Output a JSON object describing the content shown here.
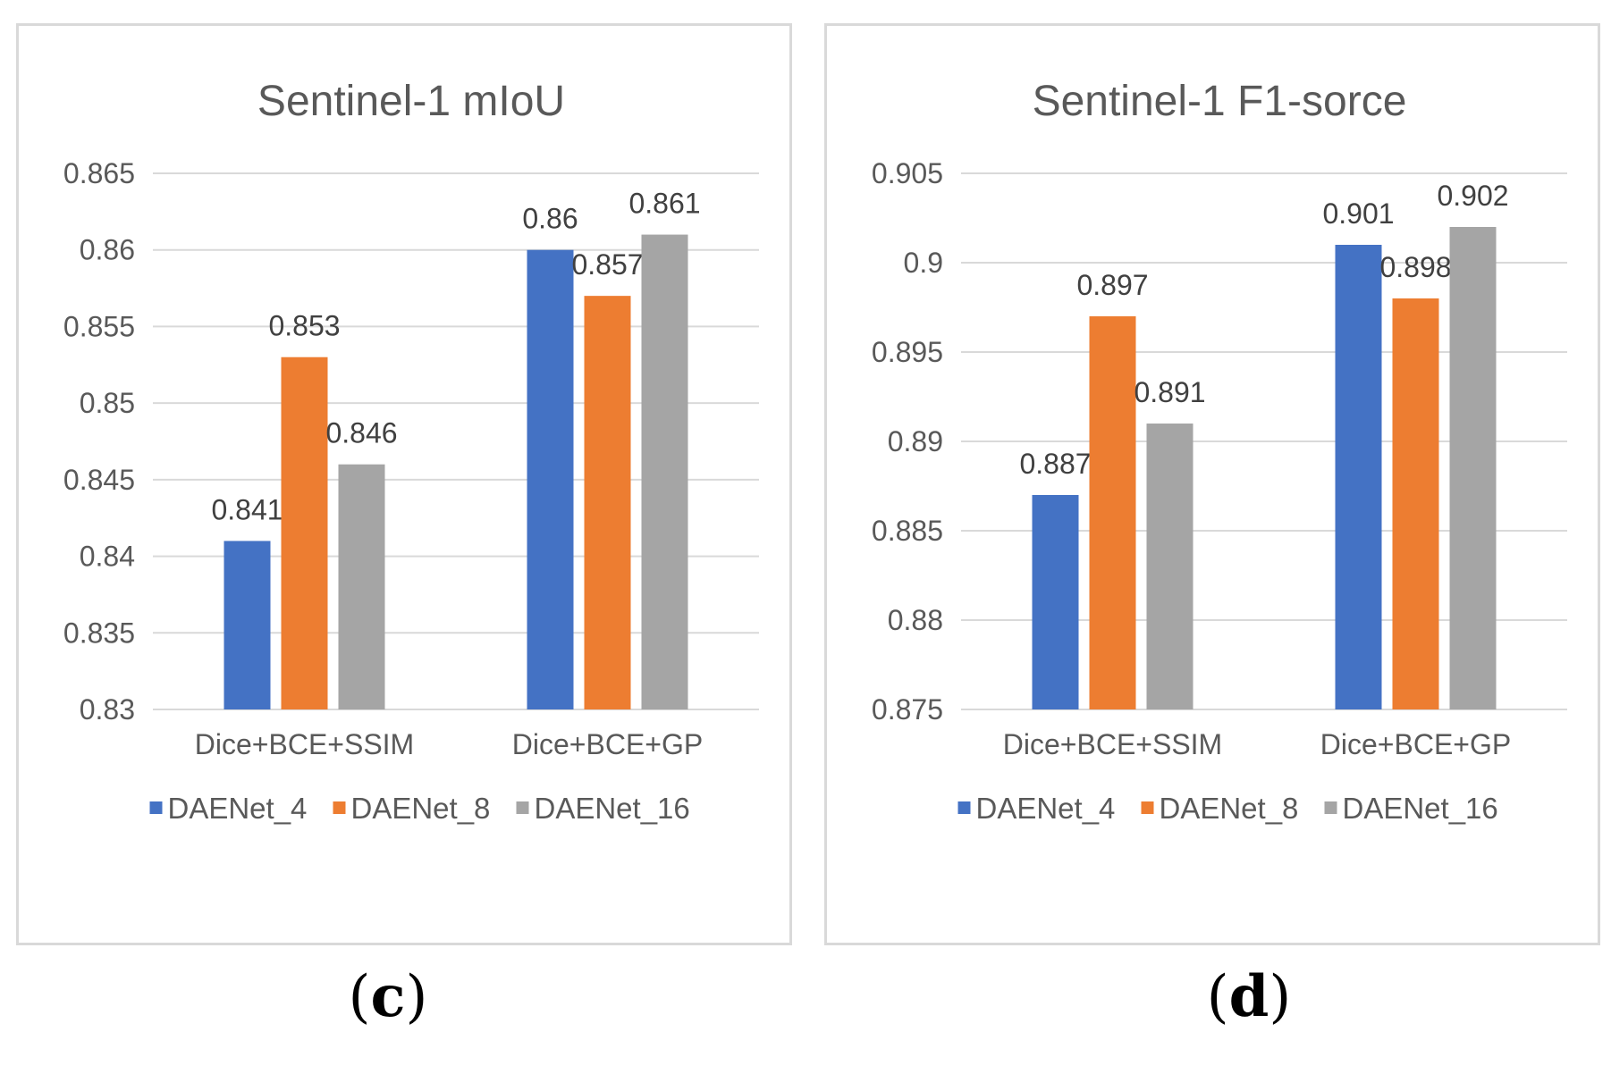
{
  "chart_data": [
    {
      "type": "bar",
      "title": "Sentinel-1 mIoU",
      "categories": [
        "Dice+BCE+SSIM",
        "Dice+BCE+GP"
      ],
      "series": [
        {
          "name": "DAENet_4",
          "color": "#4472c4",
          "values": [
            0.841,
            0.86
          ],
          "labels": [
            "0.841",
            "0.86"
          ]
        },
        {
          "name": "DAENet_8",
          "color": "#ed7d31",
          "values": [
            0.853,
            0.857
          ],
          "labels": [
            "0.853",
            "0.857"
          ]
        },
        {
          "name": "DAENet_16",
          "color": "#a5a5a5",
          "values": [
            0.846,
            0.861
          ],
          "labels": [
            "0.846",
            "0.861"
          ]
        }
      ],
      "ylim": [
        0.83,
        0.865
      ],
      "yticks": [
        0.83,
        0.835,
        0.84,
        0.845,
        0.85,
        0.855,
        0.86,
        0.865
      ],
      "ytick_labels": [
        "0.83",
        "0.835",
        "0.84",
        "0.845",
        "0.85",
        "0.855",
        "0.86",
        "0.865"
      ],
      "grid": true,
      "legend": "bottom",
      "xlabel": "",
      "ylabel": ""
    },
    {
      "type": "bar",
      "title": "Sentinel-1 F1-sorce",
      "categories": [
        "Dice+BCE+SSIM",
        "Dice+BCE+GP"
      ],
      "series": [
        {
          "name": "DAENet_4",
          "color": "#4472c4",
          "values": [
            0.887,
            0.901
          ],
          "labels": [
            "0.887",
            "0.901"
          ]
        },
        {
          "name": "DAENet_8",
          "color": "#ed7d31",
          "values": [
            0.897,
            0.898
          ],
          "labels": [
            "0.897",
            "0.898"
          ]
        },
        {
          "name": "DAENet_16",
          "color": "#a5a5a5",
          "values": [
            0.891,
            0.902
          ],
          "labels": [
            "0.891",
            "0.902"
          ]
        }
      ],
      "ylim": [
        0.875,
        0.905
      ],
      "yticks": [
        0.875,
        0.88,
        0.885,
        0.89,
        0.895,
        0.9,
        0.905
      ],
      "ytick_labels": [
        "0.875",
        "0.88",
        "0.885",
        "0.89",
        "0.895",
        "0.9",
        "0.905"
      ],
      "grid": true,
      "legend": "bottom",
      "xlabel": "",
      "ylabel": ""
    }
  ],
  "captions": {
    "c": {
      "open": "(",
      "letter": "c",
      "close": ")"
    },
    "d": {
      "open": "(",
      "letter": "d",
      "close": ")"
    }
  }
}
